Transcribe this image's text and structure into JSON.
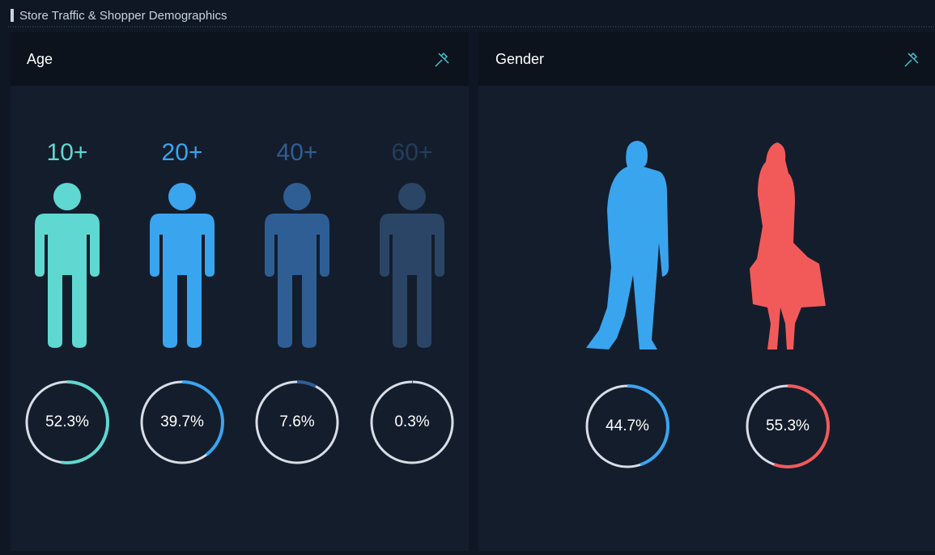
{
  "header": {
    "title": "Store Traffic & Shopper Demographics"
  },
  "panels": [
    {
      "title": "Age",
      "items": [
        {
          "label": "10+",
          "value": 52.3,
          "value_label": "52.3%",
          "color": "#5ed8d0"
        },
        {
          "label": "20+",
          "value": 39.7,
          "value_label": "39.7%",
          "color": "#3aa5ef"
        },
        {
          "label": "40+",
          "value": 7.6,
          "value_label": "7.6%",
          "color": "#2f5e95"
        },
        {
          "label": "60+",
          "value": 0.3,
          "value_label": "0.3%",
          "color": "#2a4566"
        }
      ]
    },
    {
      "title": "Gender",
      "items": [
        {
          "value": 44.7,
          "value_label": "44.7%",
          "color": "#3aa5ef"
        },
        {
          "value": 55.3,
          "value_label": "55.3%",
          "color": "#f25a5a"
        }
      ]
    }
  ]
}
